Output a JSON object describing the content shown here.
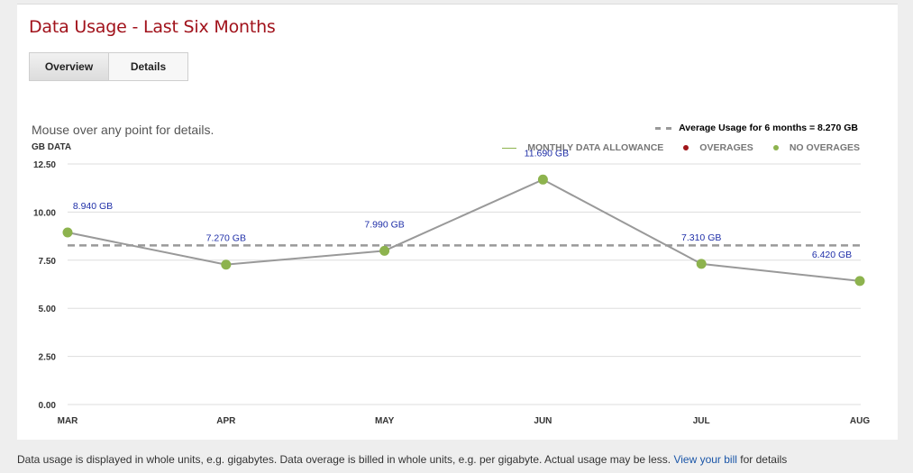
{
  "header": {
    "title": "Data Usage - Last Six Months"
  },
  "tabs": [
    {
      "label": "Overview",
      "active": true
    },
    {
      "label": "Details",
      "active": false
    }
  ],
  "hint": "Mouse over any point for details.",
  "average_legend": "Average Usage for 6 months = 8.270 GB",
  "legend": {
    "allowance": "MONTHLY DATA ALLOWANCE",
    "overages": "OVERAGES",
    "no_overages": "NO OVERAGES"
  },
  "colors": {
    "title": "#a1121b",
    "point": "#8db34e",
    "line": "#999999",
    "overage": "#a0161a",
    "data_label": "#1f2fa8"
  },
  "chart_data": {
    "type": "line",
    "ylabel": "GB DATA",
    "categories": [
      "MAR",
      "APR",
      "MAY",
      "JUN",
      "JUL",
      "AUG"
    ],
    "values": [
      8.94,
      7.27,
      7.99,
      11.69,
      7.31,
      6.42
    ],
    "data_labels": [
      "8.940 GB",
      "7.270 GB",
      "7.990 GB",
      "11.690 GB",
      "7.310 GB",
      "6.420 GB"
    ],
    "average": 8.27,
    "ylim": [
      0,
      12.5
    ],
    "yticks": [
      "0.00",
      "2.50",
      "5.00",
      "7.50",
      "10.00",
      "12.50"
    ],
    "grid": true
  },
  "footer": {
    "text": "Data usage is displayed in whole units, e.g. gigabytes. Data overage is billed in whole units, e.g. per gigabyte. Actual usage may be less.",
    "link": "View your bill",
    "suffix": "for details"
  }
}
